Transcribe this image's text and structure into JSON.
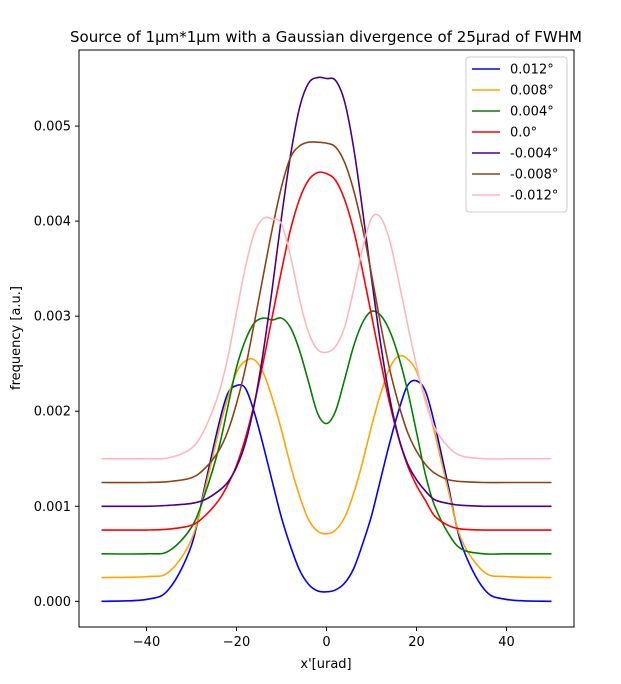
{
  "chart_data": {
    "type": "line",
    "title": "Source of 1µm*1µm with a Gaussian divergence of 25µrad of FWHM",
    "xlabel": "x'[urad]",
    "ylabel": "frequency [a.u.]",
    "xlim": [
      -55,
      55
    ],
    "ylim": [
      -0.00027,
      0.0058
    ],
    "xticks": [
      {
        "value": -40,
        "label": "−40"
      },
      {
        "value": -20,
        "label": "−20"
      },
      {
        "value": 0,
        "label": "0"
      },
      {
        "value": 20,
        "label": "20"
      },
      {
        "value": 40,
        "label": "40"
      }
    ],
    "yticks": [
      {
        "value": 0,
        "label": "0.000"
      },
      {
        "value": 0.001,
        "label": "0.001"
      },
      {
        "value": 0.002,
        "label": "0.002"
      },
      {
        "value": 0.003,
        "label": "0.003"
      },
      {
        "value": 0.004,
        "label": "0.004"
      },
      {
        "value": 0.005,
        "label": "0.005"
      }
    ],
    "grid": false,
    "legend_position": "top-right",
    "x": [
      -50,
      -40,
      -35,
      -30,
      -27,
      -24,
      -22,
      -20,
      -18,
      -16,
      -14,
      -12,
      -10,
      -8,
      -6,
      -4,
      -2,
      0,
      2,
      4,
      6,
      8,
      10,
      12,
      14,
      16,
      18,
      20,
      22,
      24,
      27,
      30,
      35,
      40,
      50
    ],
    "series": [
      {
        "name": "0.012°",
        "color": "#0000ff",
        "values": [
          0.0,
          2e-05,
          0.00013,
          0.00059,
          0.00122,
          0.00185,
          0.00218,
          0.00227,
          0.00224,
          0.00198,
          0.00163,
          0.00125,
          0.00088,
          0.00058,
          0.00033,
          0.00018,
          0.00011,
          0.0001,
          0.00012,
          0.00019,
          0.00034,
          0.0006,
          0.0009,
          0.00128,
          0.00166,
          0.002,
          0.00227,
          0.00232,
          0.00221,
          0.00187,
          0.00123,
          0.0006,
          0.00013,
          2e-05,
          0.0
        ]
      },
      {
        "name": "0.008°",
        "color": "#ffa500",
        "values": [
          0.00025,
          0.00026,
          0.00031,
          0.00065,
          0.00118,
          0.00178,
          0.00213,
          0.00241,
          0.00253,
          0.00254,
          0.0024,
          0.00213,
          0.0018,
          0.00143,
          0.00111,
          0.00086,
          0.00074,
          0.00071,
          0.00075,
          0.00088,
          0.00113,
          0.00146,
          0.00184,
          0.00218,
          0.00245,
          0.00258,
          0.00255,
          0.00242,
          0.00213,
          0.00178,
          0.00118,
          0.00065,
          0.00031,
          0.00026,
          0.00025
        ]
      },
      {
        "name": "0.004°",
        "color": "#008000",
        "values": [
          0.0005,
          0.0005,
          0.00053,
          0.00078,
          0.00113,
          0.0016,
          0.00203,
          0.00246,
          0.00275,
          0.00293,
          0.00298,
          0.00296,
          0.00298,
          0.00288,
          0.00264,
          0.00231,
          0.00198,
          0.00187,
          0.002,
          0.00233,
          0.00268,
          0.00293,
          0.00305,
          0.00301,
          0.00285,
          0.00258,
          0.00222,
          0.00178,
          0.00133,
          0.00101,
          0.00072,
          0.00055,
          0.0005,
          0.0005,
          0.0005
        ]
      },
      {
        "name": "0.0°",
        "color": "#ff0000",
        "values": [
          0.00075,
          0.00075,
          0.00076,
          0.0008,
          0.0009,
          0.00106,
          0.00122,
          0.00143,
          0.00172,
          0.00209,
          0.00253,
          0.00301,
          0.00348,
          0.00391,
          0.00423,
          0.00443,
          0.00451,
          0.0045,
          0.00443,
          0.00423,
          0.00391,
          0.00348,
          0.00301,
          0.00253,
          0.00209,
          0.00172,
          0.00143,
          0.00122,
          0.00106,
          0.0009,
          0.0008,
          0.00076,
          0.00075,
          0.00075,
          0.00075
        ]
      },
      {
        "name": "-0.004°",
        "color": "#4b0082",
        "values": [
          0.001,
          0.001,
          0.00101,
          0.00103,
          0.00107,
          0.00116,
          0.00125,
          0.00141,
          0.00167,
          0.00208,
          0.00264,
          0.00331,
          0.00404,
          0.00469,
          0.00519,
          0.00545,
          0.00551,
          0.0055,
          0.00548,
          0.00526,
          0.00478,
          0.00412,
          0.0034,
          0.00272,
          0.00215,
          0.00173,
          0.00145,
          0.00128,
          0.00116,
          0.00107,
          0.00103,
          0.00101,
          0.001,
          0.001,
          0.001
        ]
      },
      {
        "name": "-0.008°",
        "color": "#8b4513",
        "values": [
          0.00125,
          0.00125,
          0.00126,
          0.0013,
          0.0014,
          0.00158,
          0.00178,
          0.00208,
          0.00246,
          0.00294,
          0.00344,
          0.00393,
          0.00436,
          0.00467,
          0.00479,
          0.00483,
          0.00483,
          0.00482,
          0.00478,
          0.00462,
          0.00433,
          0.00393,
          0.00344,
          0.00292,
          0.00245,
          0.00208,
          0.00178,
          0.00158,
          0.00144,
          0.00135,
          0.00128,
          0.00126,
          0.00125,
          0.00125,
          0.00125
        ]
      },
      {
        "name": "-0.012°",
        "color": "#ffb6c1",
        "values": [
          0.0015,
          0.0015,
          0.00151,
          0.00161,
          0.00182,
          0.00218,
          0.00255,
          0.00304,
          0.00352,
          0.00388,
          0.00403,
          0.00402,
          0.00397,
          0.00363,
          0.00318,
          0.00283,
          0.00265,
          0.00262,
          0.00268,
          0.00288,
          0.00327,
          0.00371,
          0.00403,
          0.00404,
          0.0038,
          0.00338,
          0.00292,
          0.00248,
          0.0021,
          0.00183,
          0.00163,
          0.00153,
          0.0015,
          0.0015,
          0.0015
        ]
      }
    ]
  }
}
